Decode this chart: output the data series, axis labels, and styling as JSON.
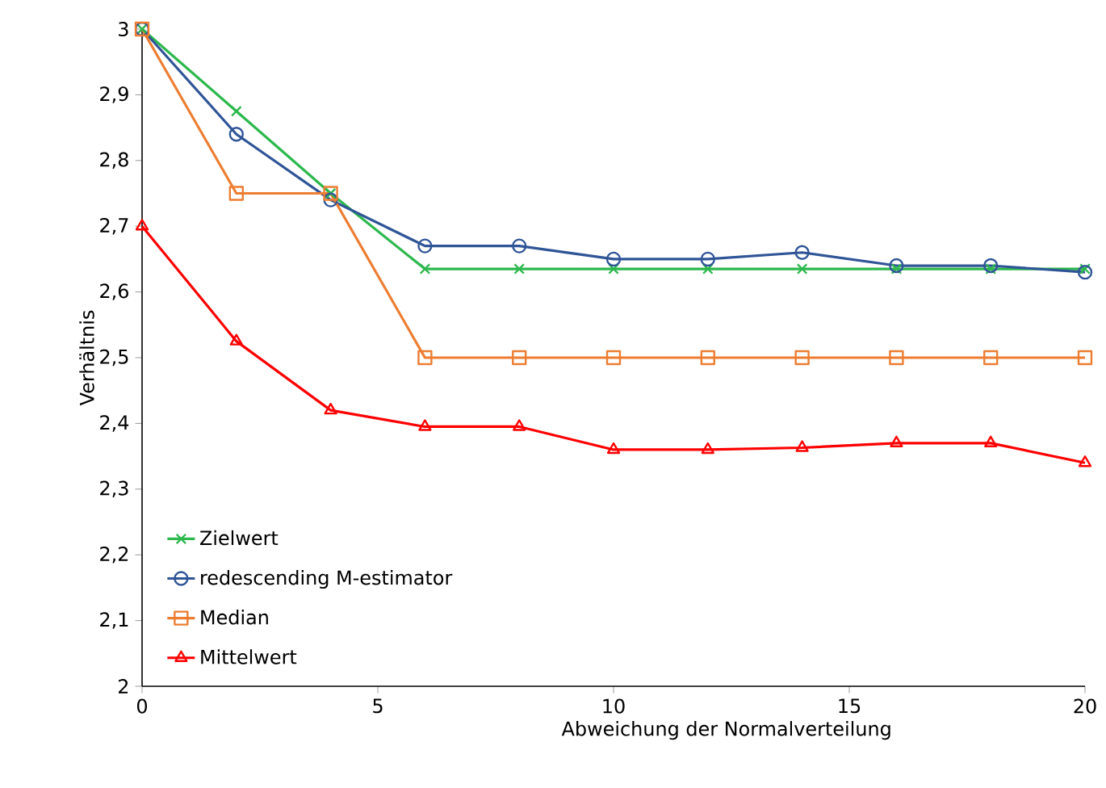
{
  "chart_data": {
    "type": "line",
    "xlabel": "Abweichung der Normalverteilung",
    "ylabel": "Verhältnis",
    "x": [
      0,
      2,
      4,
      6,
      8,
      10,
      12,
      14,
      16,
      18,
      20
    ],
    "series": [
      {
        "name": "Zielwert",
        "color": "#2db84d",
        "marker": "cross",
        "values": [
          3,
          2.875,
          2.75,
          2.635,
          2.635,
          2.635,
          2.635,
          2.635,
          2.635,
          2.635,
          2.635
        ]
      },
      {
        "name": "redescending M-estimator",
        "color": "#2f5597",
        "marker": "circle",
        "values": [
          3,
          2.84,
          2.74,
          2.67,
          2.67,
          2.65,
          2.65,
          2.66,
          2.64,
          2.64,
          2.63
        ]
      },
      {
        "name": "Median",
        "color": "#ed7d31",
        "marker": "square",
        "values": [
          3,
          2.75,
          2.75,
          2.5,
          2.5,
          2.5,
          2.5,
          2.5,
          2.5,
          2.5,
          2.5
        ]
      },
      {
        "name": "Mittelwert",
        "color": "#ff0000",
        "marker": "triangle",
        "values": [
          2.7,
          2.525,
          2.42,
          2.395,
          2.395,
          2.36,
          2.36,
          2.363,
          2.37,
          2.37,
          2.34
        ]
      }
    ],
    "xlim": [
      0,
      20
    ],
    "xticks": [
      0,
      5,
      10,
      15,
      20
    ],
    "ylim": [
      2,
      3
    ],
    "yticks": [
      2,
      {
        "value": 2.1,
        "label": "2,1"
      },
      {
        "value": 2.2,
        "label": "2,2"
      },
      {
        "value": 2.3,
        "label": "2,3"
      },
      {
        "value": 2.4,
        "label": "2,4"
      },
      {
        "value": 2.5,
        "label": "2,5"
      },
      {
        "value": 2.6,
        "label": "2,6"
      },
      {
        "value": 2.7,
        "label": "2,7"
      },
      {
        "value": 2.8,
        "label": "2,8"
      },
      {
        "value": 2.9,
        "label": "2,9"
      },
      3
    ],
    "grid": false,
    "legend": "bottom left",
    "line_style": "solid"
  }
}
